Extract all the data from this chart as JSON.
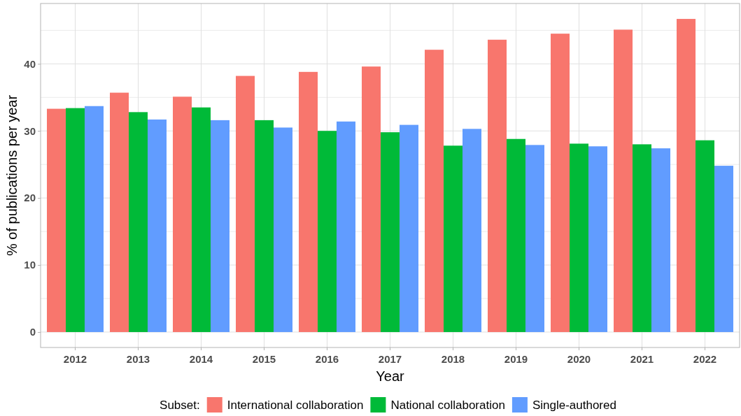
{
  "chart_data": {
    "type": "bar",
    "xlabel": "Year",
    "ylabel": "% of publications per year",
    "legend_title": "Subset:",
    "legend": "bottom",
    "grid": true,
    "categories": [
      "2012",
      "2013",
      "2014",
      "2015",
      "2016",
      "2017",
      "2018",
      "2019",
      "2020",
      "2021",
      "2022"
    ],
    "ylim": [
      -2.3,
      49
    ],
    "yticks": [
      0,
      {
        "value": 5,
        "label": null
      },
      10,
      {
        "value": 15,
        "label": null
      },
      20,
      {
        "value": 25,
        "label": null
      },
      30,
      {
        "value": 35,
        "label": null
      },
      40,
      {
        "value": 45,
        "label": null
      }
    ],
    "series": [
      {
        "name": "International collaboration",
        "color": "#f8766d",
        "values": [
          33.3,
          35.7,
          35.1,
          38.2,
          38.8,
          39.6,
          42.1,
          43.6,
          44.5,
          45.1,
          46.7
        ]
      },
      {
        "name": "National collaboration",
        "color": "#00ba38",
        "values": [
          33.4,
          32.8,
          33.5,
          31.6,
          30.0,
          29.8,
          27.8,
          28.8,
          28.1,
          28.0,
          28.6
        ]
      },
      {
        "name": "Single-authored",
        "color": "#619cff",
        "values": [
          33.7,
          31.7,
          31.6,
          30.5,
          31.4,
          30.9,
          30.3,
          27.9,
          27.7,
          27.4,
          24.8
        ]
      }
    ]
  }
}
